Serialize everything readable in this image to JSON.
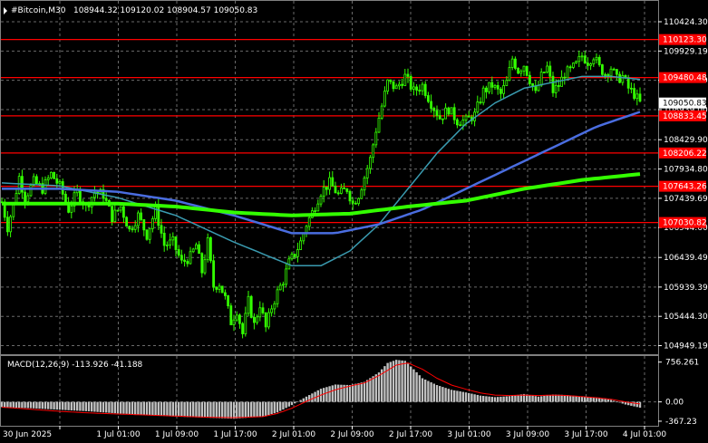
{
  "header": {
    "symbol": "#Bitcoin,M30",
    "ohlc": "108944.32 109120.02 108904.57 109050.83"
  },
  "price_scale": [
    "110424.30",
    "109929.19",
    "109434.09",
    "108939.00",
    "108429.90",
    "107934.80",
    "107439.69",
    "106944.60",
    "106439.49",
    "105939.39",
    "105444.30",
    "104949.19"
  ],
  "levels": [
    {
      "label": "110123.30",
      "price": 110123.3
    },
    {
      "label": "109480.48",
      "price": 109480.48
    },
    {
      "label": "108833.45",
      "price": 108833.45
    },
    {
      "label": "108206.22",
      "price": 108206.22
    },
    {
      "label": "107643.26",
      "price": 107643.26
    },
    {
      "label": "107030.82",
      "price": 107030.82
    }
  ],
  "current_price": {
    "label": "109050.83",
    "price": 109050.83
  },
  "macd": {
    "label": "MACD(12,26,9) -113.926 -41.188",
    "scale": [
      "756.261",
      "0.00",
      "-367.23"
    ]
  },
  "time_axis": [
    "30 Jun 2025",
    "1 Jul 01:00",
    "1 Jul 09:00",
    "1 Jul 17:00",
    "2 Jul 01:00",
    "2 Jul 09:00",
    "2 Jul 17:00",
    "3 Jul 01:00",
    "3 Jul 09:00",
    "3 Jul 17:00",
    "4 Jul 01:00"
  ],
  "colors": {
    "background": "#000000",
    "candles": "#33ff00",
    "level_line": "#ff0000",
    "ma_fast": "#3a9bb0",
    "ma_mid": "#4a6de0",
    "ma_slow": "#33ff00",
    "macd_hist": "#c0c0c0",
    "macd_signal": "#ff0000",
    "grid": "#6a6a6a",
    "text": "#ffffff"
  },
  "chart_data": {
    "type": "line",
    "title": "#Bitcoin,M30",
    "ylim": [
      104850,
      110700
    ],
    "macd_ylim": [
      -420,
      820
    ],
    "price_path": [
      [
        0,
        107380
      ],
      [
        2,
        106950
      ],
      [
        4,
        107340
      ],
      [
        6,
        107800
      ],
      [
        8,
        107450
      ],
      [
        11,
        107720
      ],
      [
        14,
        107600
      ],
      [
        17,
        107850
      ],
      [
        20,
        107640
      ],
      [
        23,
        107250
      ],
      [
        26,
        107550
      ],
      [
        29,
        107300
      ],
      [
        32,
        107550
      ],
      [
        35,
        107500
      ],
      [
        38,
        107120
      ],
      [
        41,
        107300
      ],
      [
        44,
        106900
      ],
      [
        47,
        107150
      ],
      [
        50,
        106820
      ],
      [
        53,
        107250
      ],
      [
        56,
        106650
      ],
      [
        59,
        106700
      ],
      [
        62,
        106350
      ],
      [
        65,
        106450
      ],
      [
        67,
        106650
      ],
      [
        69,
        106200
      ],
      [
        71,
        106700
      ],
      [
        73,
        105950
      ],
      [
        75,
        106000
      ],
      [
        77,
        105750
      ],
      [
        79,
        105350
      ],
      [
        81,
        105550
      ],
      [
        83,
        105150
      ],
      [
        85,
        105700
      ],
      [
        87,
        105300
      ],
      [
        89,
        105650
      ],
      [
        91,
        105250
      ],
      [
        93,
        105600
      ],
      [
        95,
        105850
      ],
      [
        97,
        106050
      ],
      [
        99,
        106350
      ],
      [
        101,
        106500
      ],
      [
        103,
        106700
      ],
      [
        105,
        107000
      ],
      [
        107,
        107200
      ],
      [
        110,
        107550
      ],
      [
        113,
        107700
      ],
      [
        116,
        107500
      ],
      [
        119,
        107600
      ],
      [
        121,
        107350
      ],
      [
        123,
        107500
      ],
      [
        125,
        107800
      ],
      [
        127,
        108100
      ],
      [
        129,
        108600
      ],
      [
        131,
        109000
      ],
      [
        133,
        109400
      ],
      [
        136,
        109300
      ],
      [
        139,
        109500
      ],
      [
        142,
        109250
      ],
      [
        145,
        109350
      ],
      [
        148,
        109050
      ],
      [
        151,
        108800
      ],
      [
        154,
        108950
      ],
      [
        157,
        108750
      ],
      [
        160,
        108750
      ],
      [
        163,
        108850
      ],
      [
        166,
        109250
      ],
      [
        169,
        109350
      ],
      [
        172,
        109200
      ],
      [
        174,
        109400
      ],
      [
        176,
        109800
      ],
      [
        178,
        109600
      ],
      [
        180,
        109700
      ],
      [
        182,
        109450
      ],
      [
        184,
        109200
      ],
      [
        186,
        109500
      ],
      [
        188,
        109650
      ],
      [
        190,
        109250
      ],
      [
        192,
        109350
      ],
      [
        194,
        109550
      ],
      [
        196,
        109600
      ],
      [
        198,
        109700
      ],
      [
        200,
        109850
      ],
      [
        202,
        109750
      ],
      [
        204,
        109850
      ],
      [
        206,
        109650
      ],
      [
        208,
        109550
      ],
      [
        210,
        109650
      ],
      [
        212,
        109450
      ],
      [
        214,
        109500
      ],
      [
        216,
        109300
      ],
      [
        218,
        109200
      ],
      [
        220,
        109050
      ]
    ],
    "series": [
      {
        "values": [
          [
            0,
            107700
          ],
          [
            20,
            107650
          ],
          [
            40,
            107450
          ],
          [
            60,
            107150
          ],
          [
            80,
            106700
          ],
          [
            100,
            106300
          ],
          [
            110,
            106300
          ],
          [
            120,
            106550
          ],
          [
            130,
            107000
          ],
          [
            140,
            107600
          ],
          [
            150,
            108200
          ],
          [
            160,
            108700
          ],
          [
            170,
            109050
          ],
          [
            180,
            109300
          ],
          [
            190,
            109400
          ],
          [
            200,
            109500
          ],
          [
            210,
            109500
          ],
          [
            220,
            109450
          ]
        ]
      },
      {
        "values": [
          [
            0,
            107600
          ],
          [
            20,
            107600
          ],
          [
            40,
            107550
          ],
          [
            60,
            107400
          ],
          [
            80,
            107150
          ],
          [
            100,
            106850
          ],
          [
            115,
            106850
          ],
          [
            130,
            107000
          ],
          [
            145,
            107250
          ],
          [
            160,
            107600
          ],
          [
            175,
            107950
          ],
          [
            190,
            108300
          ],
          [
            205,
            108650
          ],
          [
            220,
            108900
          ]
        ]
      },
      {
        "values": [
          [
            0,
            107350
          ],
          [
            20,
            107350
          ],
          [
            40,
            107350
          ],
          [
            60,
            107300
          ],
          [
            80,
            107200
          ],
          [
            100,
            107150
          ],
          [
            120,
            107180
          ],
          [
            140,
            107300
          ],
          [
            160,
            107400
          ],
          [
            180,
            107600
          ],
          [
            200,
            107750
          ],
          [
            220,
            107850
          ]
        ]
      }
    ],
    "macd_hist_path": [
      [
        0,
        -100
      ],
      [
        10,
        -120
      ],
      [
        20,
        -150
      ],
      [
        30,
        -180
      ],
      [
        40,
        -220
      ],
      [
        50,
        -250
      ],
      [
        60,
        -280
      ],
      [
        70,
        -300
      ],
      [
        80,
        -320
      ],
      [
        90,
        -280
      ],
      [
        95,
        -200
      ],
      [
        100,
        -60
      ],
      [
        105,
        100
      ],
      [
        110,
        250
      ],
      [
        115,
        330
      ],
      [
        120,
        320
      ],
      [
        125,
        380
      ],
      [
        130,
        560
      ],
      [
        133,
        740
      ],
      [
        136,
        800
      ],
      [
        139,
        780
      ],
      [
        142,
        620
      ],
      [
        145,
        450
      ],
      [
        150,
        320
      ],
      [
        155,
        230
      ],
      [
        160,
        180
      ],
      [
        165,
        120
      ],
      [
        170,
        90
      ],
      [
        175,
        110
      ],
      [
        180,
        150
      ],
      [
        185,
        100
      ],
      [
        190,
        140
      ],
      [
        195,
        130
      ],
      [
        200,
        100
      ],
      [
        205,
        80
      ],
      [
        210,
        40
      ],
      [
        215,
        -50
      ],
      [
        220,
        -110
      ]
    ],
    "macd_signal_path": [
      [
        0,
        -100
      ],
      [
        10,
        -140
      ],
      [
        20,
        -180
      ],
      [
        30,
        -210
      ],
      [
        40,
        -230
      ],
      [
        50,
        -250
      ],
      [
        60,
        -270
      ],
      [
        70,
        -290
      ],
      [
        80,
        -300
      ],
      [
        90,
        -280
      ],
      [
        95,
        -220
      ],
      [
        100,
        -120
      ],
      [
        105,
        10
      ],
      [
        110,
        130
      ],
      [
        115,
        230
      ],
      [
        120,
        300
      ],
      [
        125,
        360
      ],
      [
        130,
        500
      ],
      [
        136,
        700
      ],
      [
        140,
        740
      ],
      [
        145,
        620
      ],
      [
        150,
        450
      ],
      [
        155,
        320
      ],
      [
        160,
        240
      ],
      [
        165,
        170
      ],
      [
        170,
        130
      ],
      [
        175,
        120
      ],
      [
        180,
        130
      ],
      [
        185,
        120
      ],
      [
        190,
        130
      ],
      [
        195,
        120
      ],
      [
        200,
        100
      ],
      [
        205,
        80
      ],
      [
        210,
        50
      ],
      [
        215,
        0
      ],
      [
        220,
        -40
      ]
    ]
  }
}
